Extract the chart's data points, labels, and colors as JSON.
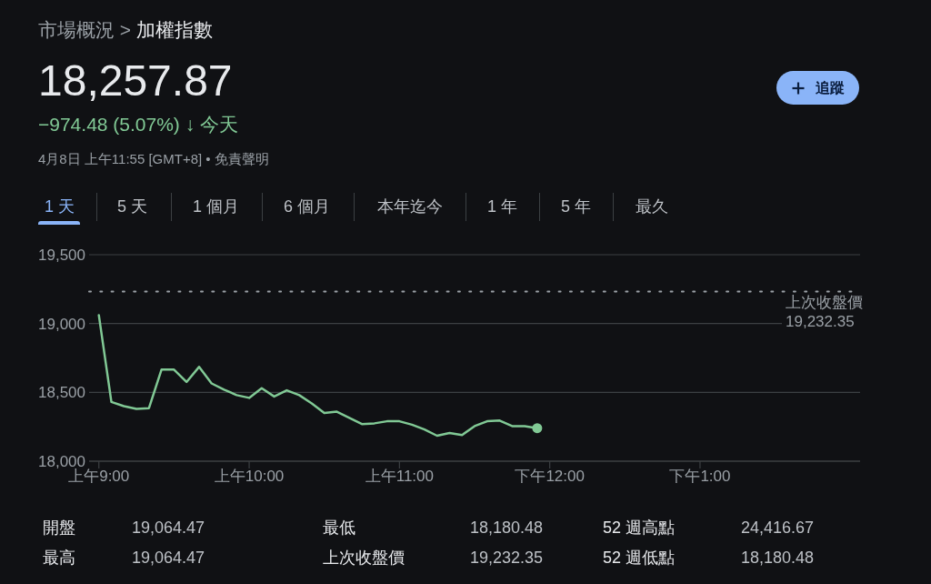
{
  "chart_data": {
    "type": "line",
    "title": "市場概況 > 加權指數",
    "subtitle": "18,257.87",
    "annotations": [
      "−974.48 (5.07%) ↓ 今天",
      "4月8日 上午11:55 [GMT+8] • 免責聲明",
      "1 天",
      "5 天",
      "1 個月",
      "6 個月",
      "本年迄今",
      "1 年",
      "5 年",
      "最久",
      "追蹤",
      "開盤 19,064.47",
      "最低 18,180.48",
      "52 週高點 24,416.67",
      "最高 19,064.47",
      "上次收盤價 19,232.35",
      "52 週低點 18,180.48"
    ],
    "categories": [
      "上午9:00",
      null,
      null,
      null,
      null,
      null,
      null,
      null,
      null,
      null,
      null,
      null,
      "上午10:00",
      null,
      null,
      null,
      null,
      null,
      null,
      null,
      null,
      null,
      null,
      null,
      "上午11:00",
      null,
      null,
      null,
      null,
      null,
      null,
      null,
      null,
      null,
      null,
      null,
      "下午12:00",
      null,
      null,
      null,
      null,
      null,
      null,
      null,
      null,
      null,
      null,
      null,
      "下午1:00",
      null,
      null,
      null,
      null,
      null,
      null,
      null,
      null,
      null,
      null,
      null,
      null
    ],
    "series": [
      {
        "color": "#81c995",
        "values": [
          19060,
          18430,
          18400,
          18380,
          18385,
          18665,
          18665,
          18575,
          18685,
          18565,
          18520,
          18480,
          18460,
          18530,
          18470,
          18515,
          18480,
          18420,
          18350,
          18360,
          18315,
          18270,
          18275,
          18290,
          18290,
          18265,
          18230,
          18185,
          18205,
          18190,
          18255,
          18290,
          18295,
          18255,
          18255,
          18240,
          null,
          null,
          null,
          null,
          null,
          null,
          null,
          null,
          null,
          null,
          null,
          null,
          null,
          null,
          null,
          null,
          null,
          null,
          null,
          null,
          null,
          null,
          null,
          null,
          null
        ]
      },
      {
        "type": "scatter",
        "color": "#81c995",
        "values": [
          null,
          null,
          null,
          null,
          null,
          null,
          null,
          null,
          null,
          null,
          null,
          null,
          null,
          null,
          null,
          null,
          null,
          null,
          null,
          null,
          null,
          null,
          null,
          null,
          null,
          null,
          null,
          null,
          null,
          null,
          null,
          null,
          null,
          null,
          null,
          18240,
          null,
          null,
          null,
          null,
          null,
          null,
          null,
          null,
          null,
          null,
          null,
          null,
          null,
          null,
          null,
          null,
          null,
          null,
          null,
          null,
          null,
          null,
          null,
          null,
          null
        ]
      }
    ],
    "ylim": [
      18000,
      19500
    ],
    "yticks": [
      {
        "value": 18000,
        "label": "18,000"
      },
      {
        "value": 18500,
        "label": "18,500"
      },
      {
        "value": 19000,
        "label": "19,000"
      },
      {
        "value": 19500,
        "label": "19,500"
      }
    ],
    "ref_lines": [
      {
        "axis": "y",
        "value": 19232.35,
        "label": "上次收盤價19,232.35",
        "color": "#9aa0a6",
        "line_style": "dotted"
      }
    ],
    "grid": "y",
    "line_style": "solid"
  }
}
